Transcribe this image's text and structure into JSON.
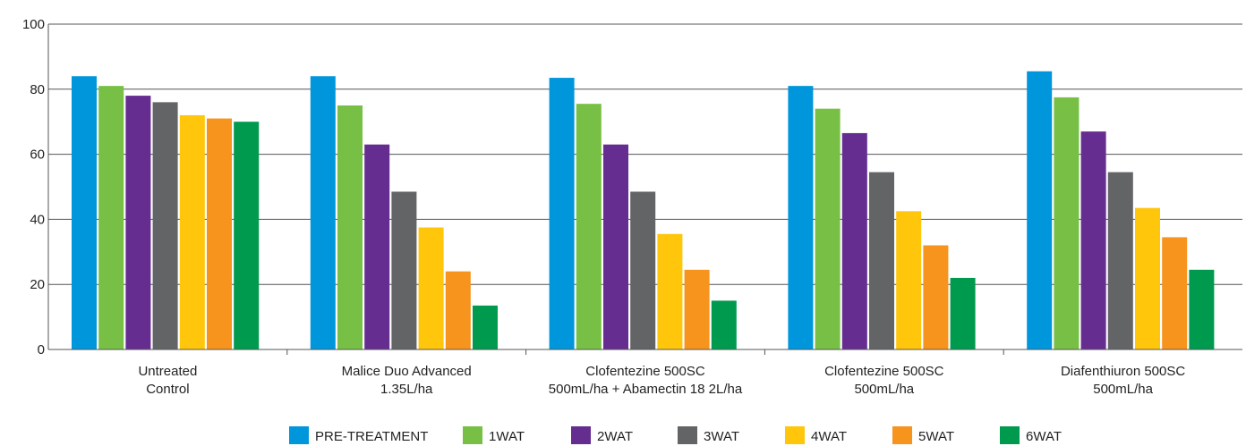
{
  "chart_data": {
    "type": "bar",
    "title": "",
    "xlabel": "",
    "ylabel": "",
    "ylim": [
      0,
      100
    ],
    "yticks": [
      0,
      20,
      40,
      60,
      80,
      100
    ],
    "grid": "horizontal",
    "legend_position": "bottom",
    "categories": [
      [
        "Untreated",
        "Control"
      ],
      [
        "Malice Duo Advanced",
        "1.35L/ha"
      ],
      [
        "Clofentezine 500SC",
        "500mL/ha + Abamectin 18 2L/ha"
      ],
      [
        "Clofentezine 500SC",
        "500mL/ha"
      ],
      [
        "Diafenthiuron 500SC",
        "500mL/ha"
      ]
    ],
    "series": [
      {
        "name": "PRE-TREATMENT",
        "color": "#0096dc",
        "values": [
          84,
          84,
          83.5,
          81,
          85.5
        ]
      },
      {
        "name": "1WAT",
        "color": "#77c045",
        "values": [
          81,
          75,
          75.5,
          74,
          77.5
        ]
      },
      {
        "name": "2WAT",
        "color": "#662d91",
        "values": [
          78,
          63,
          63,
          66.5,
          67
        ]
      },
      {
        "name": "3WAT",
        "color": "#636466",
        "values": [
          76,
          48.5,
          48.5,
          54.5,
          54.5
        ]
      },
      {
        "name": "4WAT",
        "color": "#ffc60b",
        "values": [
          72,
          37.5,
          35.5,
          42.5,
          43.5
        ]
      },
      {
        "name": "5WAT",
        "color": "#f7941d",
        "values": [
          71,
          24,
          24.5,
          32,
          34.5
        ]
      },
      {
        "name": "6WAT",
        "color": "#009a4e",
        "values": [
          70,
          13.5,
          15,
          22,
          24.5
        ]
      }
    ]
  }
}
